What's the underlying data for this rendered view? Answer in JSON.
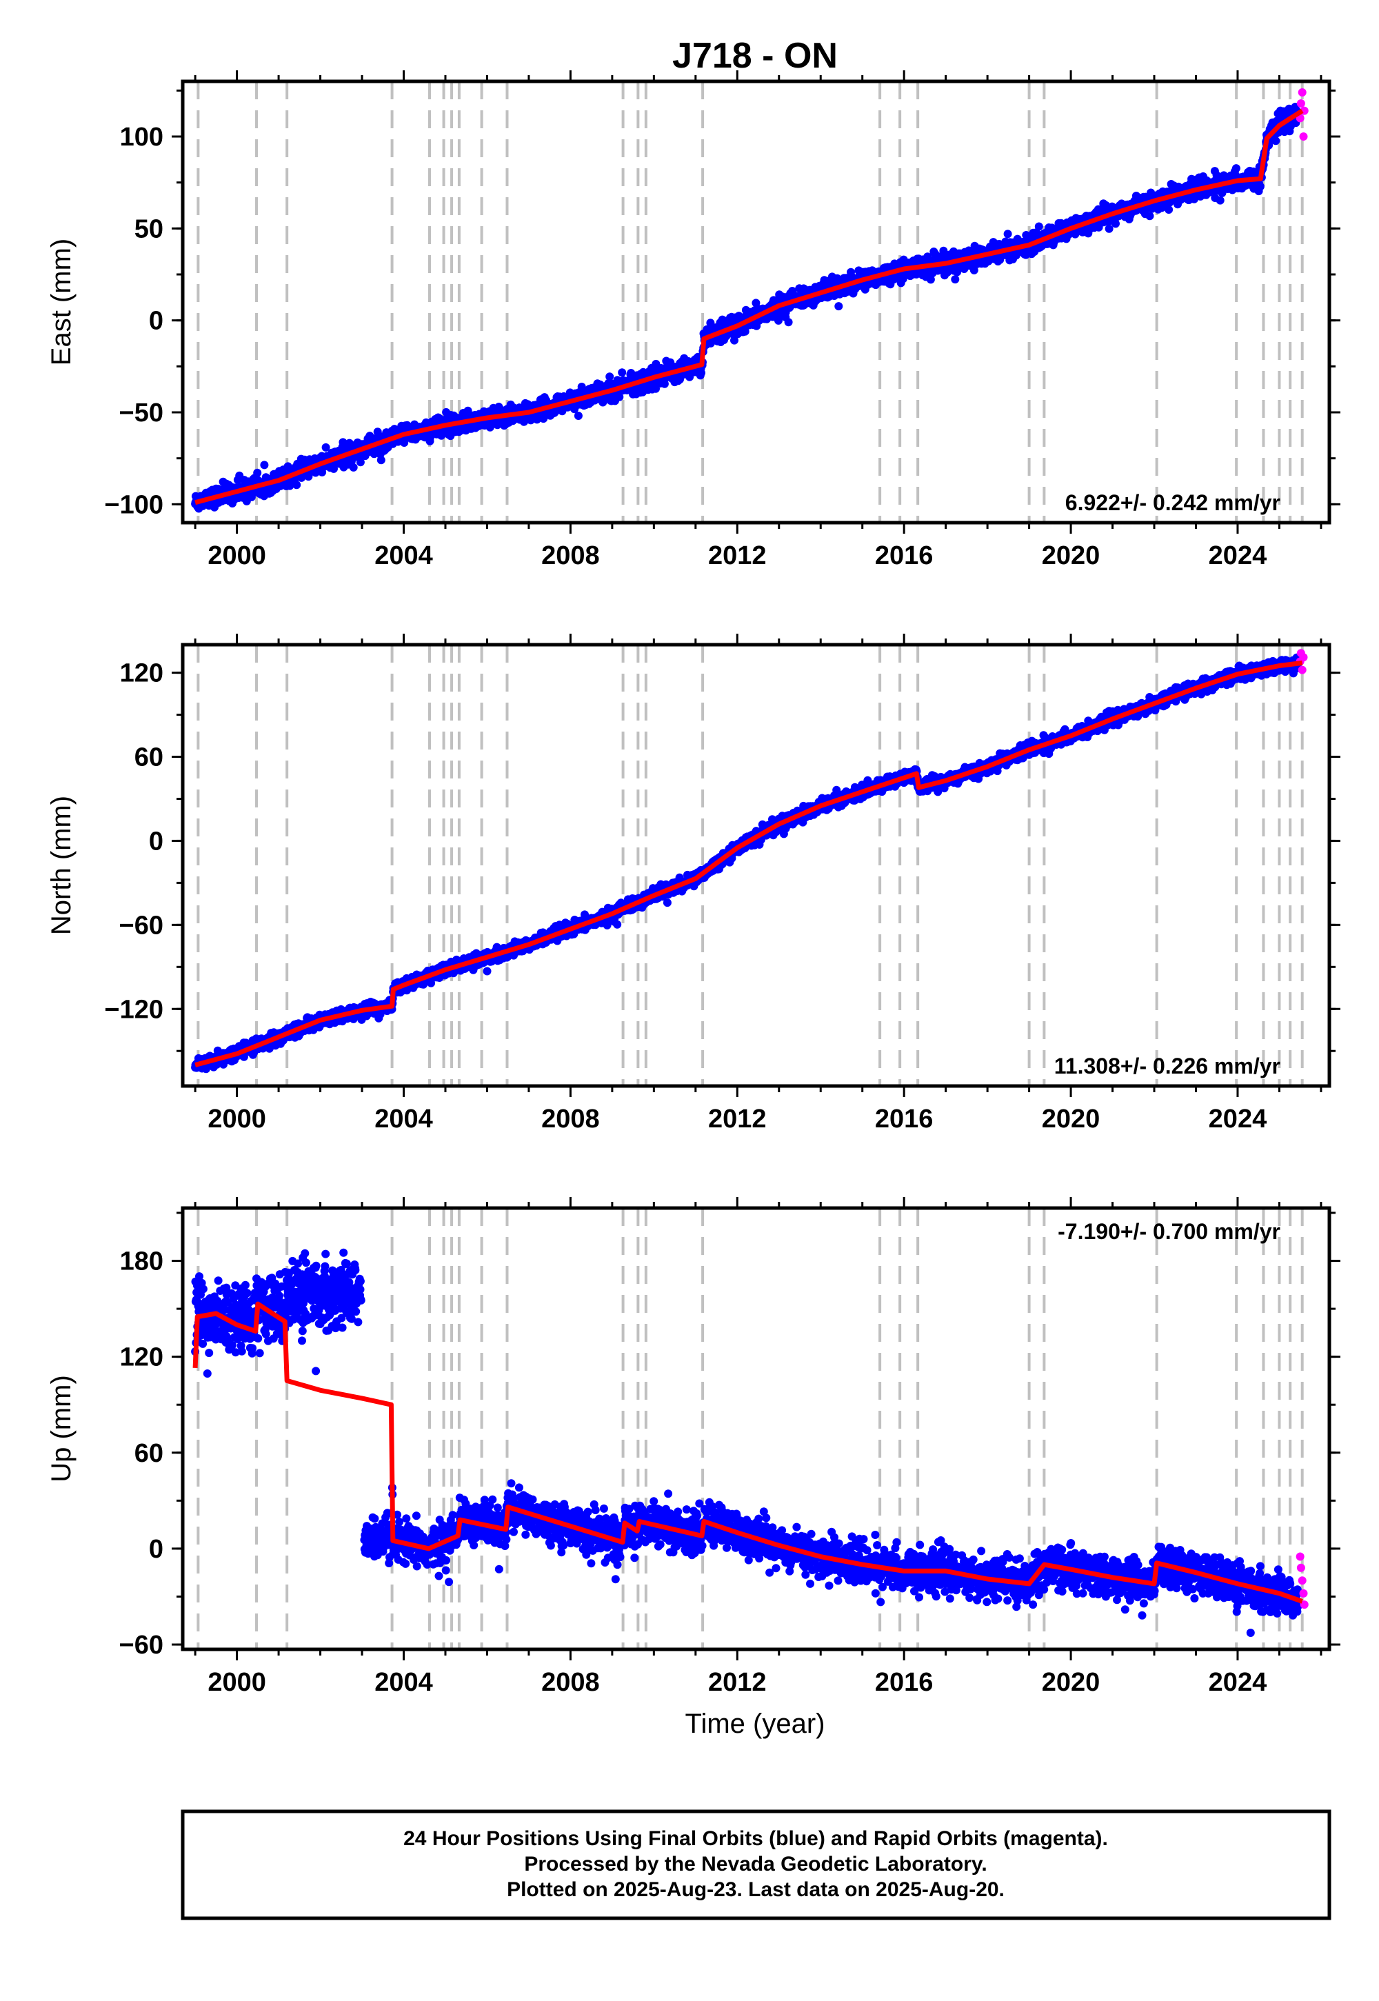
{
  "title": "J718 - ON",
  "xlabel": "Time (year)",
  "footer": [
    "24 Hour Positions Using Final Orbits (blue) and Rapid Orbits (magenta).",
    "Processed by the Nevada Geodetic Laboratory.",
    "Plotted on 2025-Aug-23. Last data on 2025-Aug-20."
  ],
  "colors": {
    "final_orbits": "#0000ff",
    "rapid_orbits": "#ff00ff",
    "model": "#ff0000",
    "event_lines": "#c0c0c0"
  },
  "chart_data": [
    {
      "type": "scatter",
      "ylabel": "East (mm)",
      "xlim": [
        1998.7,
        2026.2
      ],
      "ylim": [
        -110,
        130
      ],
      "xticks": [
        2000,
        2004,
        2008,
        2012,
        2016,
        2020,
        2024
      ],
      "yticks": [
        -100,
        -50,
        0,
        50,
        100
      ],
      "grid": false,
      "rate_label": "6.922+/- 0.242 mm/yr",
      "rate_label_position": "bottom-right",
      "event_lines": [
        1999.07,
        2000.47,
        2001.2,
        2003.72,
        2004.62,
        2004.96,
        2005.15,
        2005.33,
        2005.87,
        2006.48,
        2009.26,
        2009.62,
        2009.81,
        2011.17,
        2015.42,
        2015.9,
        2016.33,
        2019.0,
        2019.36,
        2022.06,
        2023.97,
        2024.62,
        2025.0,
        2025.26,
        2025.55
      ],
      "model": {
        "name": "Model fit",
        "x": [
          1999.0,
          2000.0,
          2001.0,
          2002.0,
          2003.0,
          2004.0,
          2005.0,
          2006.0,
          2007.0,
          2008.0,
          2009.0,
          2010.0,
          2011.15,
          2011.2,
          2012.0,
          2013.0,
          2014.0,
          2015.0,
          2016.0,
          2017.0,
          2018.0,
          2019.0,
          2020.0,
          2021.0,
          2022.0,
          2023.0,
          2024.0,
          2024.55,
          2024.7,
          2025.0,
          2025.55
        ],
        "y": [
          -99,
          -93,
          -87,
          -78,
          -70,
          -62,
          -57,
          -53,
          -50,
          -44,
          -38,
          -31,
          -24,
          -10,
          -3,
          8,
          15,
          22,
          28,
          31,
          36,
          41,
          50,
          58,
          65,
          71,
          76,
          77,
          99,
          106,
          114
        ]
      },
      "series": [
        {
          "name": "Final orbits",
          "x_range": [
            1999.0,
            2025.45
          ],
          "scatter_mm": 4
        },
        {
          "name": "Rapid orbits",
          "x": [
            2025.5,
            2025.52,
            2025.55,
            2025.58,
            2025.6
          ],
          "y": [
            110,
            118,
            124,
            100,
            114
          ]
        }
      ]
    },
    {
      "type": "scatter",
      "ylabel": "North (mm)",
      "xlim": [
        1998.7,
        2026.2
      ],
      "ylim": [
        -175,
        140
      ],
      "xticks": [
        2000,
        2004,
        2008,
        2012,
        2016,
        2020,
        2024
      ],
      "yticks": [
        -120,
        -60,
        0,
        60,
        120
      ],
      "grid": false,
      "rate_label": "11.308+/- 0.226 mm/yr",
      "rate_label_position": "bottom-right",
      "event_lines": [
        1999.07,
        2000.47,
        2001.2,
        2003.72,
        2004.62,
        2004.96,
        2005.15,
        2005.33,
        2005.87,
        2006.48,
        2009.26,
        2009.62,
        2009.81,
        2011.17,
        2015.42,
        2015.9,
        2016.33,
        2019.0,
        2019.36,
        2022.06,
        2023.97,
        2024.62,
        2025.0,
        2025.26,
        2025.55
      ],
      "model": {
        "name": "Model fit",
        "x": [
          1999.0,
          2000.0,
          2001.0,
          2002.0,
          2003.0,
          2003.72,
          2003.75,
          2004.0,
          2005.0,
          2006.0,
          2007.0,
          2008.0,
          2009.0,
          2010.0,
          2011.0,
          2012.0,
          2013.0,
          2014.0,
          2015.0,
          2016.3,
          2016.35,
          2017.0,
          2018.0,
          2019.0,
          2020.0,
          2021.0,
          2022.0,
          2023.0,
          2024.0,
          2025.0,
          2025.55
        ],
        "y": [
          -160,
          -152,
          -140,
          -128,
          -121,
          -118,
          -106,
          -103,
          -92,
          -83,
          -74,
          -63,
          -52,
          -39,
          -27,
          -5,
          12,
          25,
          35,
          48,
          38,
          43,
          53,
          65,
          75,
          87,
          98,
          109,
          119,
          125,
          127
        ]
      },
      "series": [
        {
          "name": "Final orbits",
          "x_range": [
            1999.0,
            2025.45
          ],
          "scatter_mm": 3.5
        },
        {
          "name": "Rapid orbits",
          "x": [
            2025.5,
            2025.52,
            2025.55,
            2025.58
          ],
          "y": [
            128,
            134,
            122,
            131
          ]
        }
      ]
    },
    {
      "type": "scatter",
      "ylabel": "Up (mm)",
      "xlim": [
        1998.7,
        2026.2
      ],
      "ylim": [
        -63,
        213
      ],
      "xticks": [
        2000,
        2004,
        2008,
        2012,
        2016,
        2020,
        2024
      ],
      "yticks": [
        -60,
        0,
        60,
        120,
        180
      ],
      "grid": false,
      "rate_label": "-7.190+/- 0.700 mm/yr",
      "rate_label_position": "top-right",
      "event_lines": [
        1999.07,
        2000.47,
        2001.2,
        2003.72,
        2004.62,
        2004.96,
        2005.15,
        2005.33,
        2005.87,
        2006.48,
        2009.26,
        2009.62,
        2009.81,
        2011.17,
        2015.42,
        2015.9,
        2016.33,
        2019.0,
        2019.36,
        2022.06,
        2023.97,
        2024.62,
        2025.0,
        2025.26,
        2025.55
      ],
      "model": {
        "name": "Model fit",
        "x": [
          1999.0,
          1999.05,
          1999.5,
          2000.0,
          2000.45,
          2000.5,
          2001.15,
          2001.2,
          2002.0,
          2003.0,
          2003.7,
          2003.74,
          2004.6,
          2005.3,
          2005.35,
          2006.45,
          2006.5,
          2008.0,
          2009.25,
          2009.3,
          2009.6,
          2009.65,
          2011.15,
          2011.2,
          2012.0,
          2013.0,
          2014.0,
          2015.0,
          2016.0,
          2017.0,
          2018.0,
          2019.0,
          2019.36,
          2020.0,
          2021.0,
          2022.0,
          2022.06,
          2023.0,
          2024.0,
          2025.0,
          2025.55
        ],
        "y": [
          113,
          145,
          147,
          140,
          136,
          153,
          142,
          105,
          99,
          94,
          90,
          5,
          0,
          8,
          18,
          12,
          26,
          14,
          4,
          16,
          11,
          17,
          8,
          17,
          10,
          2,
          -5,
          -10,
          -14,
          -14,
          -19,
          -22,
          -10,
          -13,
          -18,
          -22,
          -9,
          -15,
          -22,
          -28,
          -33
        ]
      },
      "series": [
        {
          "name": "Final orbits",
          "x_range": [
            1999.0,
            2025.45
          ],
          "scatter_mm": 10
        },
        {
          "name": "Rapid orbits",
          "x": [
            2025.5,
            2025.52,
            2025.55,
            2025.58,
            2025.6
          ],
          "y": [
            -5,
            -12,
            -20,
            -28,
            -35
          ]
        }
      ]
    }
  ]
}
